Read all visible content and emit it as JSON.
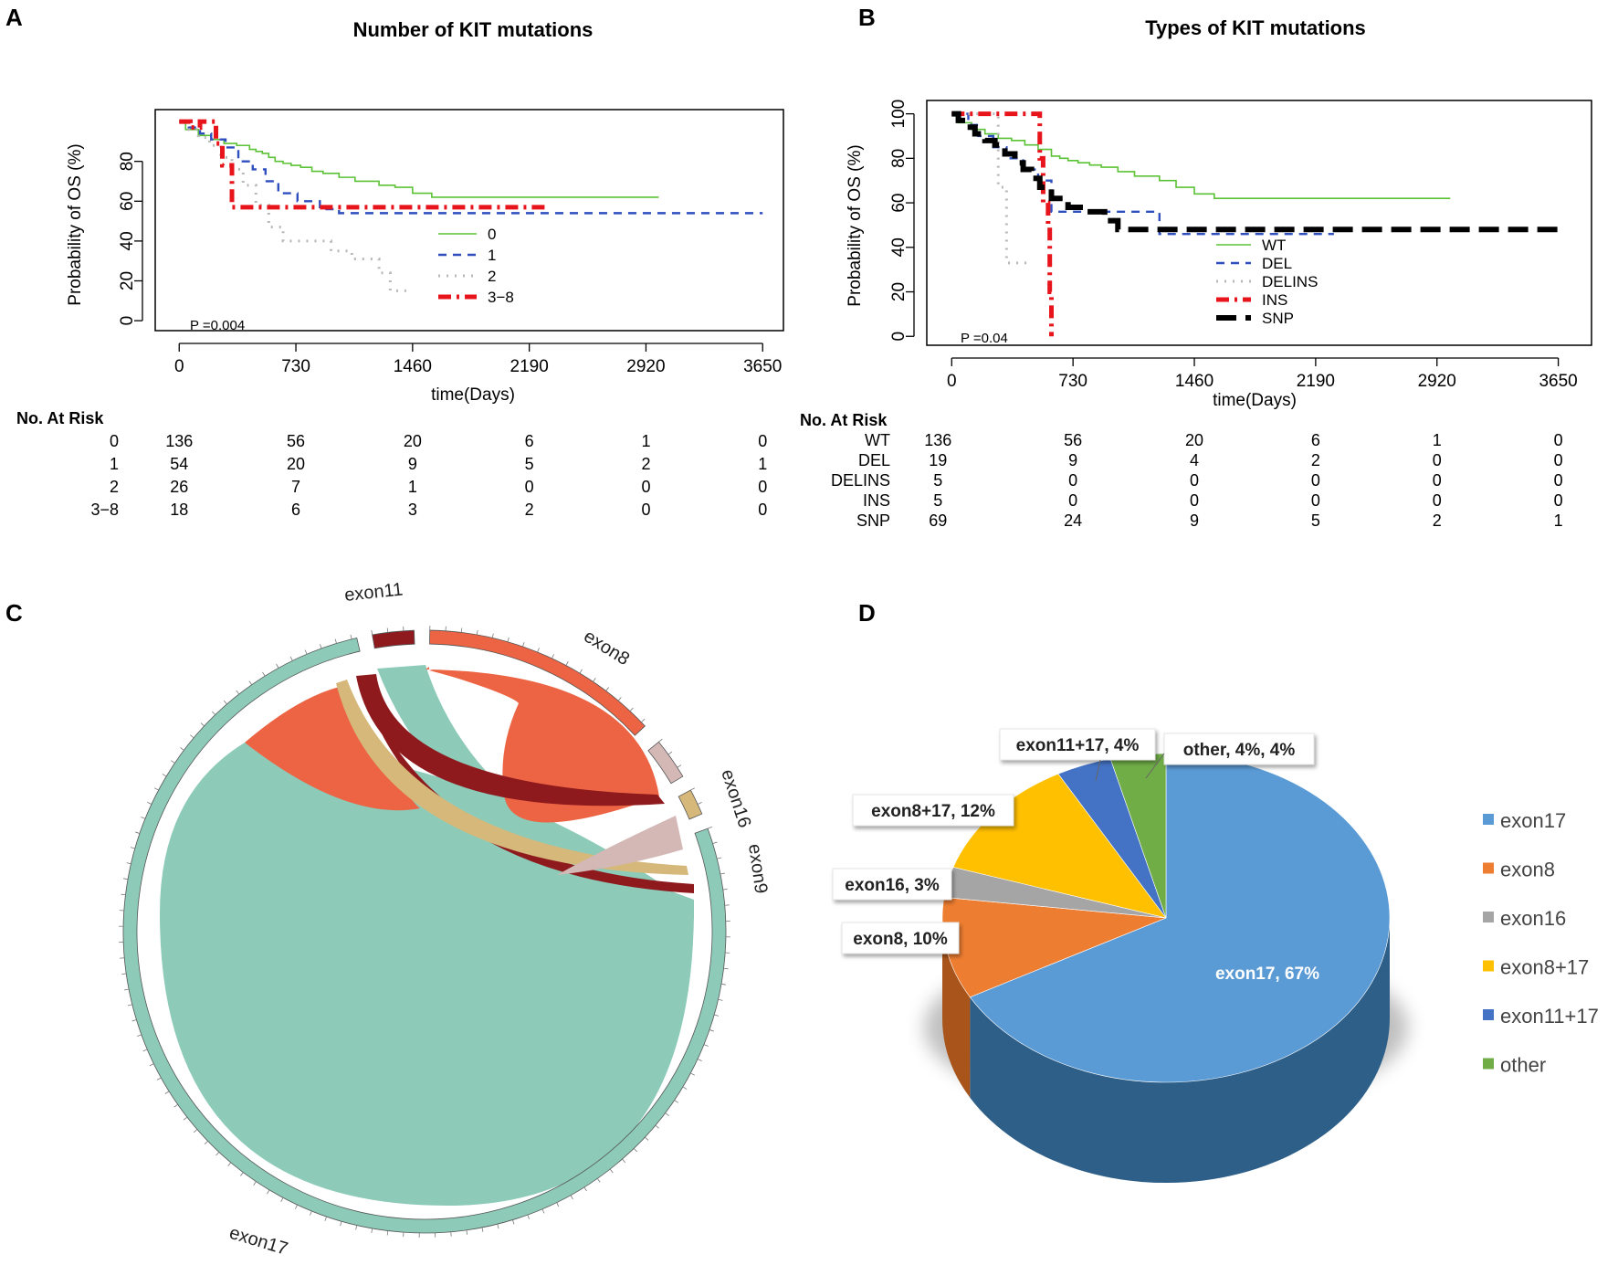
{
  "panels": {
    "A": "A",
    "B": "B",
    "C": "C",
    "D": "D"
  },
  "chart_data": [
    {
      "id": "A",
      "type": "line",
      "title": "Number of KIT mutations",
      "xlabel": "time(Days)",
      "ylabel": "Probability of OS (%)",
      "xticks": [
        0,
        730,
        1460,
        2190,
        2920,
        3650
      ],
      "yticks": [
        0,
        20,
        40,
        60,
        80
      ],
      "xlim": [
        -150,
        3780
      ],
      "ylim": [
        -5,
        106
      ],
      "pvalue": "P =0.004",
      "series": [
        {
          "name": "0",
          "color": "#5bc236",
          "dash": "",
          "width": 1.6,
          "x": [
            0,
            40,
            120,
            200,
            280,
            360,
            440,
            480,
            520,
            560,
            600,
            650,
            700,
            760,
            830,
            900,
            1000,
            1100,
            1250,
            1350,
            1460,
            1580,
            1700,
            3000
          ],
          "y": [
            100,
            96,
            93,
            91,
            89,
            88,
            86,
            85,
            84,
            82,
            80,
            79,
            78,
            77,
            75,
            74,
            72,
            70,
            68,
            67,
            64,
            62,
            62,
            62
          ]
        },
        {
          "name": "1",
          "color": "#2f4fbf",
          "dash": "9,7",
          "width": 2.4,
          "x": [
            0,
            60,
            130,
            200,
            290,
            370,
            460,
            540,
            620,
            740,
            880,
            1000,
            1500,
            2200,
            3650
          ],
          "y": [
            100,
            97,
            94,
            91,
            87,
            80,
            76,
            70,
            64,
            60,
            56,
            54,
            54,
            54,
            54
          ]
        },
        {
          "name": "2",
          "color": "#b8b8b8",
          "dash": "2,7",
          "width": 3,
          "x": [
            0,
            60,
            120,
            190,
            260,
            330,
            400,
            480,
            560,
            650,
            800,
            950,
            1080,
            1180,
            1250,
            1320,
            1420
          ],
          "y": [
            100,
            96,
            92,
            88,
            82,
            76,
            68,
            58,
            47,
            40,
            40,
            35,
            31,
            31,
            24,
            15,
            15
          ]
        },
        {
          "name": "3-8",
          "color": "#e8141c",
          "dash": "14,6,3,6",
          "width": 5,
          "x": [
            0,
            70,
            130,
            230,
            270,
            330,
            700,
            1000,
            1500,
            2300
          ],
          "y": [
            100,
            97,
            100,
            89,
            78,
            57,
            57,
            57,
            57,
            57
          ]
        }
      ],
      "legend": [
        "0",
        "1",
        "2",
        "3−8"
      ],
      "risk_table": {
        "header": "No. At Risk",
        "rows": [
          {
            "label": "0",
            "values": [
              "136",
              "56",
              "20",
              "6",
              "1",
              "0"
            ]
          },
          {
            "label": "1",
            "values": [
              "54",
              "20",
              "9",
              "5",
              "2",
              "1"
            ]
          },
          {
            "label": "2",
            "values": [
              "26",
              "7",
              "1",
              "0",
              "0",
              "0"
            ]
          },
          {
            "label": "3−8",
            "values": [
              "18",
              "6",
              "3",
              "2",
              "0",
              "0"
            ]
          }
        ]
      }
    },
    {
      "id": "B",
      "type": "line",
      "title": "Types of KIT mutations",
      "xlabel": "time(Days)",
      "ylabel": "Probability of OS (%)",
      "xticks": [
        0,
        730,
        1460,
        2190,
        2920,
        3650
      ],
      "yticks": [
        0,
        20,
        40,
        60,
        80,
        100
      ],
      "xlim": [
        -150,
        3850
      ],
      "ylim": [
        -4,
        106
      ],
      "pvalue": "P =0.04",
      "series": [
        {
          "name": "WT",
          "color": "#5bc236",
          "dash": "",
          "width": 1.6,
          "x": [
            0,
            40,
            120,
            200,
            280,
            360,
            440,
            520,
            600,
            650,
            700,
            760,
            830,
            900,
            1000,
            1100,
            1250,
            1350,
            1460,
            1580,
            3000
          ],
          "y": [
            100,
            96,
            93,
            91,
            89,
            88,
            86,
            84,
            81,
            80,
            79,
            78,
            77,
            76,
            74,
            72,
            70,
            67,
            64,
            62,
            62
          ]
        },
        {
          "name": "DEL",
          "color": "#2f4fbf",
          "dash": "9,7",
          "width": 2.4,
          "x": [
            0,
            100,
            160,
            250,
            330,
            430,
            520,
            600,
            900,
            1220,
            1250,
            2300
          ],
          "y": [
            100,
            95,
            90,
            85,
            80,
            75,
            70,
            56,
            56,
            56,
            46,
            46
          ]
        },
        {
          "name": "DELINS",
          "color": "#b8b8b8",
          "dash": "2,7",
          "width": 3,
          "x": [
            0,
            120,
            250,
            280,
            330,
            460
          ],
          "y": [
            100,
            100,
            100,
            67,
            33,
            33
          ]
        },
        {
          "name": "INS",
          "color": "#e8141c",
          "dash": "14,6,3,6",
          "width": 5,
          "x": [
            0,
            80,
            500,
            530,
            550,
            580,
            590,
            600
          ],
          "y": [
            100,
            100,
            100,
            80,
            60,
            50,
            20,
            0
          ]
        },
        {
          "name": "SNP",
          "color": "#000000",
          "dash": "22,10",
          "width": 6,
          "x": [
            0,
            40,
            90,
            140,
            200,
            260,
            320,
            380,
            430,
            480,
            530,
            600,
            700,
            800,
            920,
            1000,
            1300,
            2200,
            3650
          ],
          "y": [
            100,
            97,
            94,
            91,
            88,
            86,
            82,
            78,
            75,
            71,
            67,
            62,
            58,
            56,
            52,
            48,
            48,
            48,
            48
          ]
        }
      ],
      "legend": [
        "WT",
        "DEL",
        "DELINS",
        "INS",
        "SNP"
      ],
      "risk_table": {
        "header": "No. At Risk",
        "rows": [
          {
            "label": "WT",
            "values": [
              "136",
              "56",
              "20",
              "6",
              "1",
              "0"
            ]
          },
          {
            "label": "DEL",
            "values": [
              "19",
              "9",
              "4",
              "2",
              "0",
              "0"
            ]
          },
          {
            "label": "DELINS",
            "values": [
              "5",
              "0",
              "0",
              "0",
              "0",
              "0"
            ]
          },
          {
            "label": "INS",
            "values": [
              "5",
              "0",
              "0",
              "0",
              "0",
              "0"
            ]
          },
          {
            "label": "SNP",
            "values": [
              "69",
              "24",
              "9",
              "5",
              "2",
              "1"
            ]
          }
        ]
      }
    },
    {
      "id": "C",
      "type": "chord",
      "segments": [
        {
          "name": "exon8",
          "color": "#ec6444"
        },
        {
          "name": "exon16",
          "color": "#d3b8b6"
        },
        {
          "name": "exon9",
          "color": "#d6b97a"
        },
        {
          "name": "exon17",
          "color": "#8dcab8"
        },
        {
          "name": "exon11",
          "color": "#8e1a1e"
        }
      ]
    },
    {
      "id": "D",
      "type": "pie",
      "slices": [
        {
          "name": "exon17",
          "value": 67,
          "label": "exon17, 67%",
          "color": "#5b9bd5",
          "side": "#2e5f88"
        },
        {
          "name": "exon8",
          "value": 10,
          "label": "exon8, 10%",
          "color": "#ed7d31",
          "side": "#a8541b"
        },
        {
          "name": "exon16",
          "value": 3,
          "label": "exon16, 3%",
          "color": "#a5a5a5",
          "side": "#6f6f6f"
        },
        {
          "name": "exon8+17",
          "value": 12,
          "label": "exon8+17, 12%",
          "color": "#ffc000",
          "side": "#b88900"
        },
        {
          "name": "exon11+17",
          "value": 4,
          "label": "exon11+17, 4%",
          "color": "#4472c4",
          "side": "#2a4a85"
        },
        {
          "name": "other",
          "value": 4,
          "label": "other, 4%, 4%",
          "color": "#70ad47",
          "side": "#4b7a2e"
        }
      ],
      "legend": [
        "exon17",
        "exon8",
        "exon16",
        "exon8+17",
        "exon11+17",
        "other"
      ]
    }
  ]
}
